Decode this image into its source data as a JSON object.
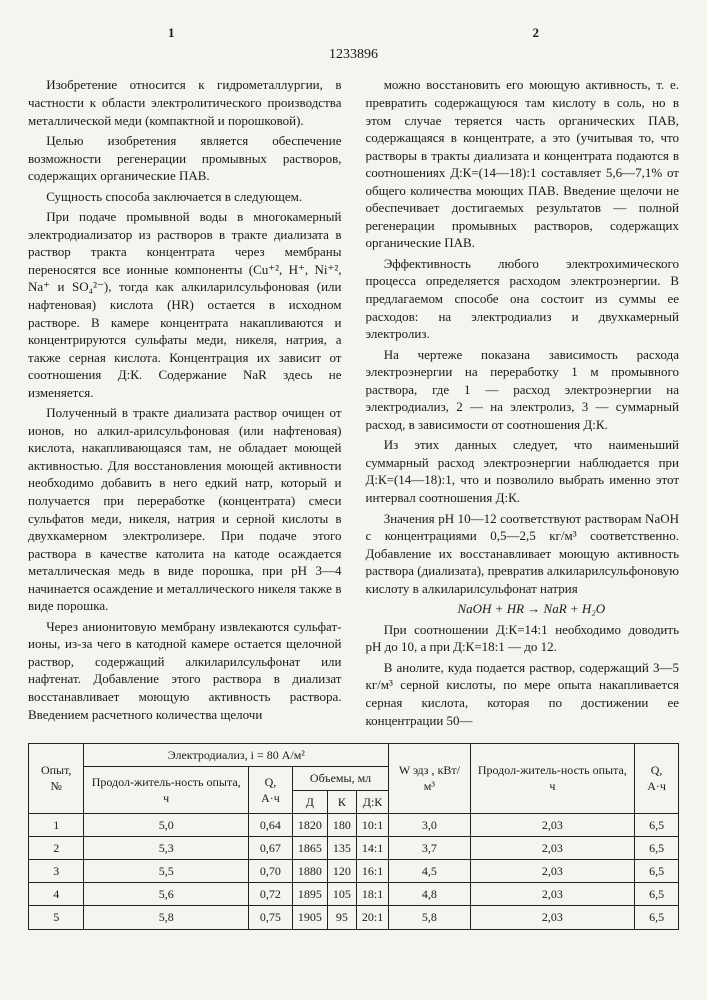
{
  "header": {
    "col1": "1",
    "patent": "1233896",
    "col2": "2"
  },
  "body": {
    "p1": "Изобретение относится к гидрометаллургии, в частности к области электролитического производства металлической меди (компактной и порошковой).",
    "p2": "Целью изобретения является обеспечение возможности регенерации промывных растворов, содержащих органические ПАВ.",
    "p3": "Сущность способа заключается в следующем.",
    "p4": "При подаче промывной воды в многокамерный электродиализатор из растворов в тракте диализата в раствор тракта концентрата через мембраны переносятся все ионные компоненты (Cu⁺², H⁺, Ni⁺², Na⁺ и SO₄²⁻), тогда как алкиларилсульфоновая (или нафтеновая) кислота (HR) остается в исходном растворе. В камере концентрата накапливаются и концентрируются сульфаты меди, никеля, натрия, а также серная кислота. Концентрация их зависит от соотношения Д:К. Содержание NaR здесь не изменяется.",
    "p5": "Полученный в тракте диализата раствор очищен от ионов, но алкил-арилсульфоновая (или нафтеновая) кислота, накапливающаяся там, не обладает моющей активностью. Для восстановления моющей активности необходимо добавить в него едкий натр, который и получается при переработке (концентрата) смеси сульфатов меди, никеля, натрия и серной кислоты в двухкамерном электролизере. При подаче этого раствора в качестве католита на катоде осаждается металлическая медь в виде порошка, при pH 3—4 начинается осаждение и металлического никеля также в виде порошка.",
    "p6": "Через анионитовую мембрану извлекаются сульфат-ионы, из-за чего в катодной камере остается щелочной раствор, содержащий алкиларилсульфонат или нафтенат. Добавление этого раствора в диализат восстанавливает моющую активность раствора. Введением расчетного количества щелочи",
    "p7": "можно восстановить его моющую активность, т. е. превратить содержащуюся там кислоту в соль, но в этом случае теряется часть органических ПАВ, содержащаяся в концентрате, а это (учитывая то, что растворы в тракты диализата и концентрата подаются в соотношениях Д:К=(14—18):1 составляет 5,6—7,1% от общего количества моющих ПАВ. Введение щелочи не обеспечивает достигаемых результатов — полной регенерации промывных растворов, содержащих органические ПАВ.",
    "p8": "Эффективность любого электрохимического процесса определяется расходом электроэнергии. В предлагаемом способе она состоит из суммы ее расходов: на электродиализ и двухкамерный электролиз.",
    "p9": "На чертеже показана зависимость расхода электроэнергии на переработку 1 м промывного раствора, где 1 — расход электроэнергии на электродиализ, 2 — на электролиз, 3 — суммарный расход, в зависимости от соотношения Д:К.",
    "p10": "Из этих данных следует, что наименьший суммарный расход электроэнергии наблюдается при Д:К=(14—18):1, что и позволило выбрать именно этот интервал соотношения Д:К.",
    "p11": "Значения pH 10—12 соответствуют растворам NaOH с концентрациями 0,5—2,5 кг/м³ соответственно. Добавление их восстанавливает моющую активность раствора (диализата), превратив алкиларилсульфоновую кислоту в алкиларилсульфонат натрия",
    "formula": "NaOH + HR → NaR + H₂O",
    "p12": "При соотношении Д:К=14:1 необходимо доводить pH до 10, а при Д:К=18:1 — до 12.",
    "p13": "В анолите, куда подается раствор, содержащий 3—5 кг/м³ серной кислоты, по мере опыта накапливается серная кислота, которая по достижении ее концентрации 50—"
  },
  "table": {
    "h_opyt": "Опыт, №",
    "h_ed": "Электродиализ, i = 80 А/м²",
    "h_dur1": "Продол-житель-ность опыта, ч",
    "h_q1": "Q, А·ч",
    "h_vol": "Объемы, мл",
    "h_d": "Д",
    "h_k": "К",
    "h_dk": "Д:К",
    "h_w": "W эдз , кВт/м³",
    "h_dur2": "Продол-житель-ность опыта, ч",
    "h_q2": "Q, А·ч",
    "rows": [
      {
        "n": "1",
        "dur": "5,0",
        "q": "0,64",
        "d": "1820",
        "k": "180",
        "dk": "10:1",
        "w": "3,0",
        "dur2": "2,03",
        "q2": "6,5"
      },
      {
        "n": "2",
        "dur": "5,3",
        "q": "0,67",
        "d": "1865",
        "k": "135",
        "dk": "14:1",
        "w": "3,7",
        "dur2": "2,03",
        "q2": "6,5"
      },
      {
        "n": "3",
        "dur": "5,5",
        "q": "0,70",
        "d": "1880",
        "k": "120",
        "dk": "16:1",
        "w": "4,5",
        "dur2": "2,03",
        "q2": "6,5"
      },
      {
        "n": "4",
        "dur": "5,6",
        "q": "0,72",
        "d": "1895",
        "k": "105",
        "dk": "18:1",
        "w": "4,8",
        "dur2": "2,03",
        "q2": "6,5"
      },
      {
        "n": "5",
        "dur": "5,8",
        "q": "0,75",
        "d": "1905",
        "k": "95",
        "dk": "20:1",
        "w": "5,8",
        "dur2": "2,03",
        "q2": "6,5"
      }
    ]
  }
}
